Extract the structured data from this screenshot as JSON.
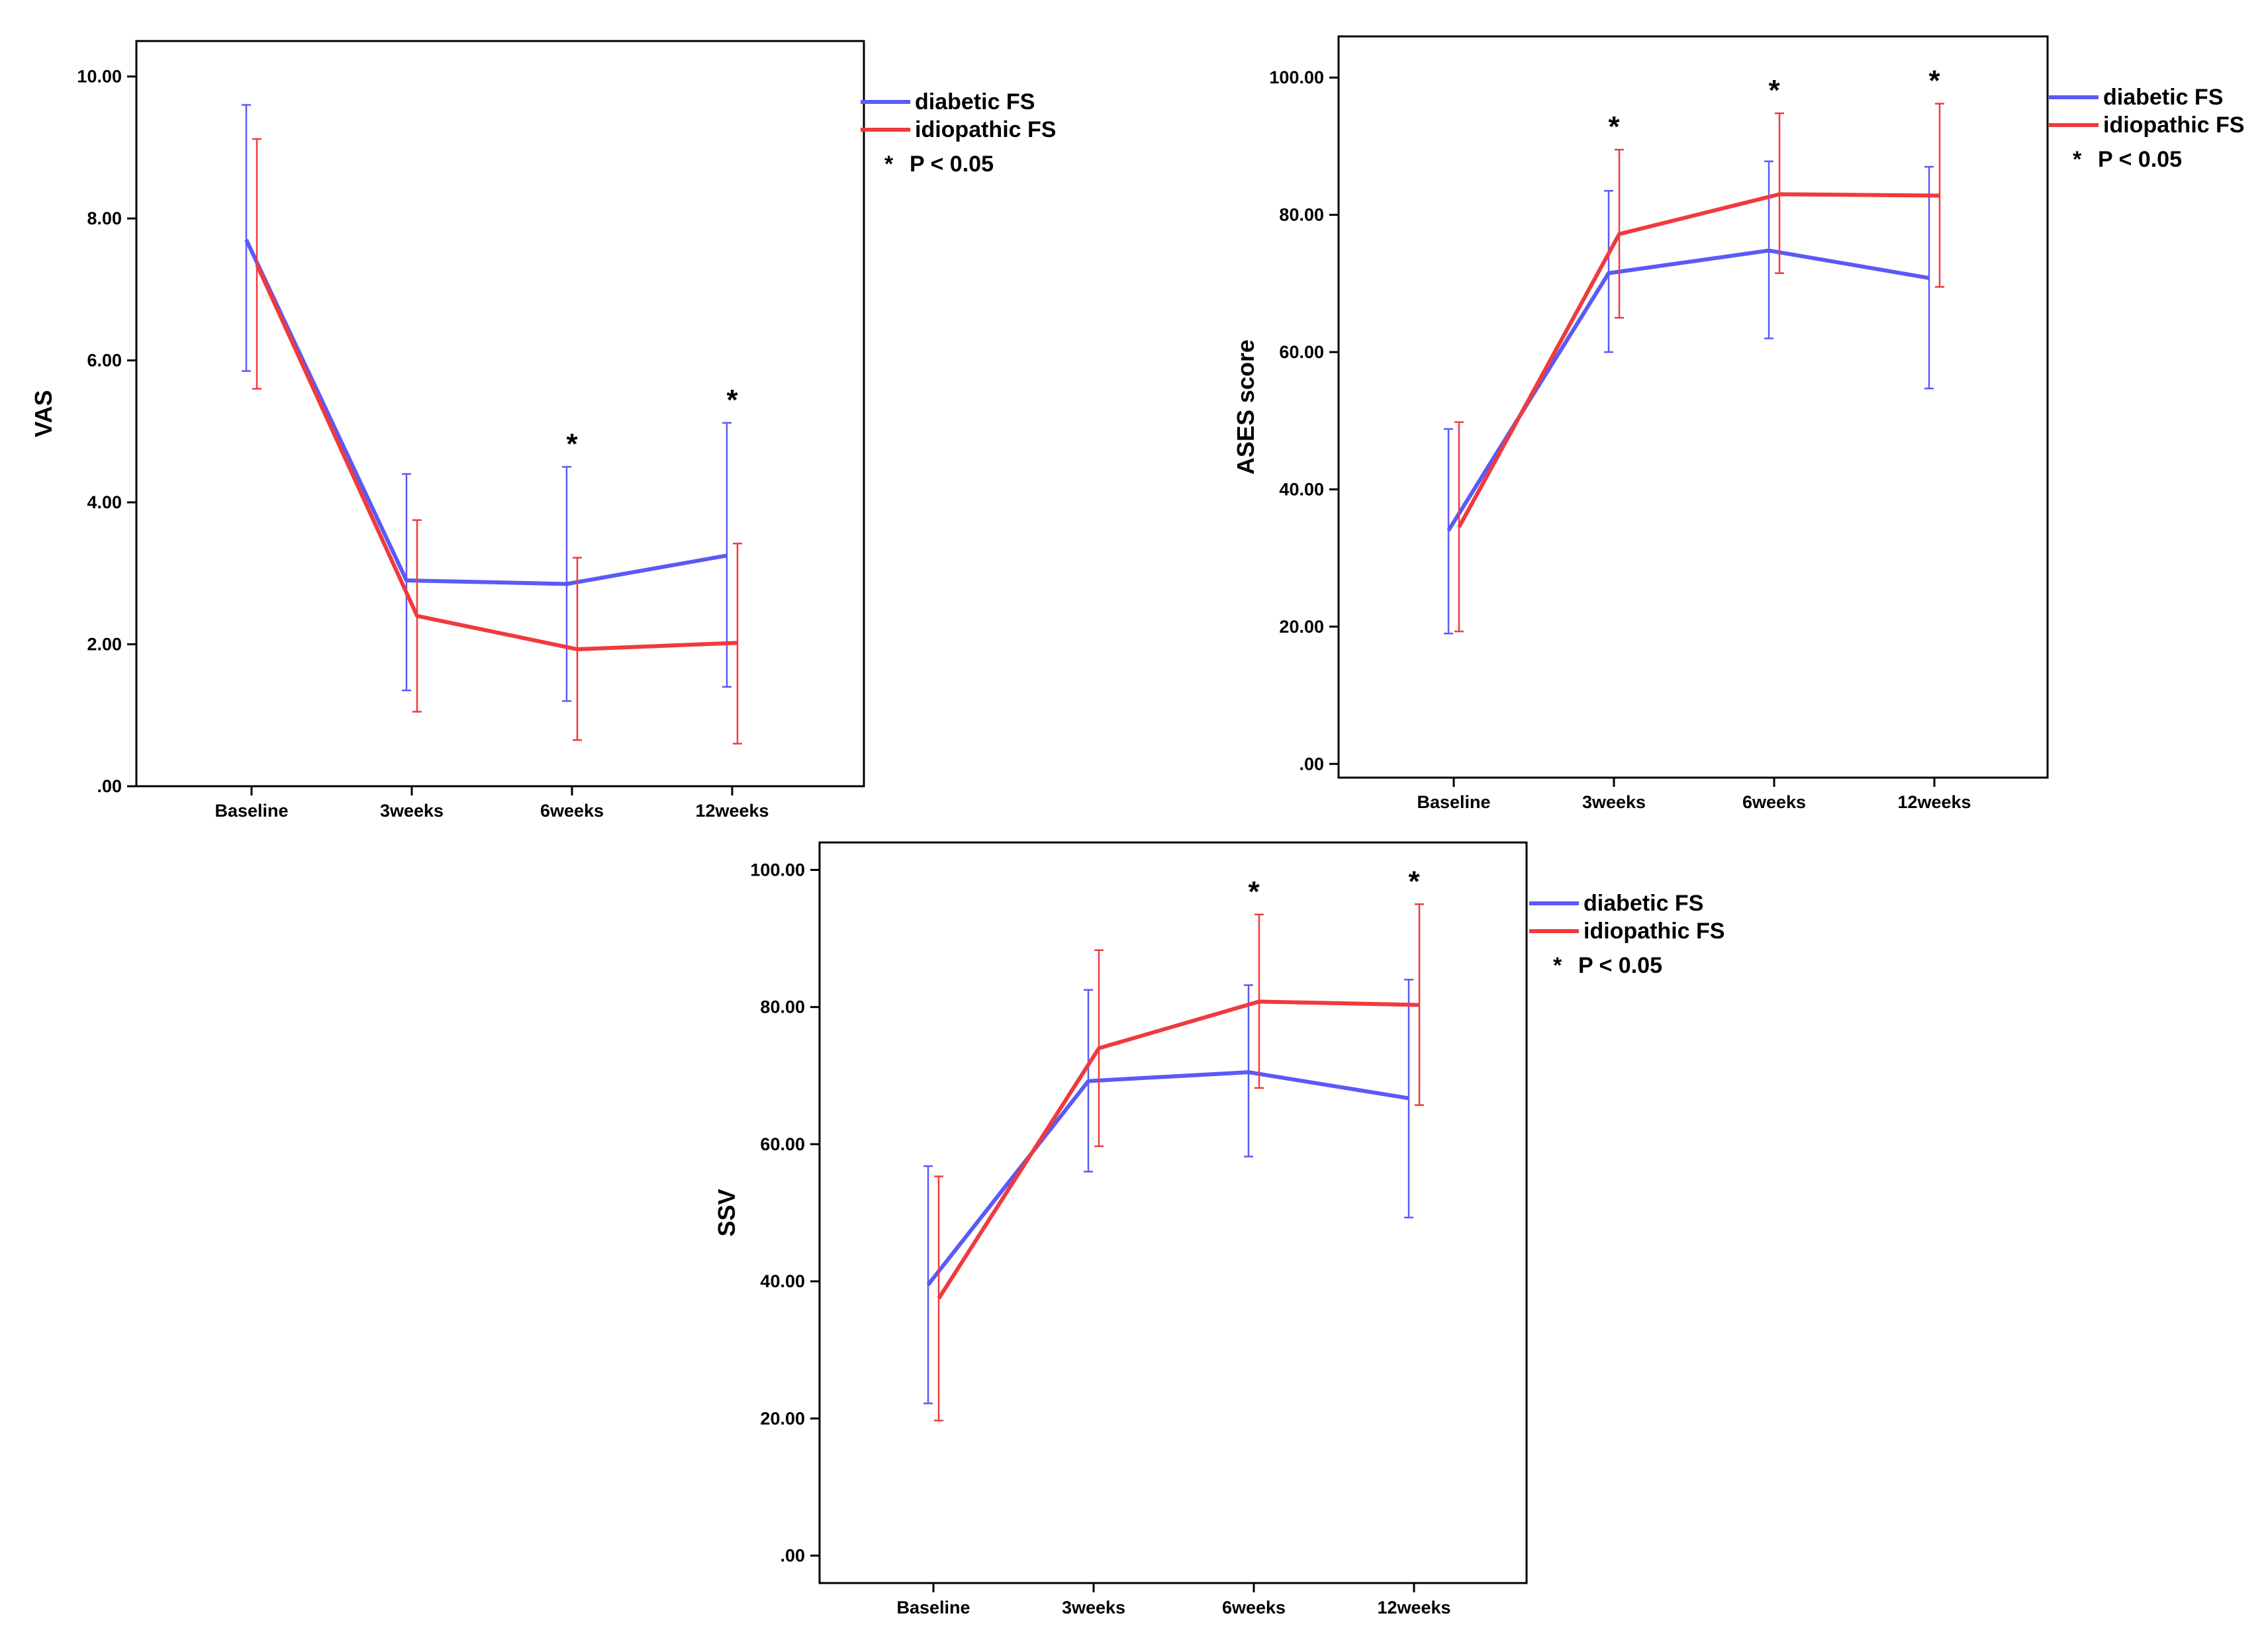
{
  "figure_title": "",
  "colors": {
    "diabetic": "#5a5af7",
    "idiopathic": "#f03a3e",
    "frame": "#000000"
  },
  "chart_data": [
    {
      "type": "line",
      "ylabel": "VAS",
      "ylim": [
        0,
        10.5
      ],
      "yticks": [
        ".00",
        "2.00",
        "4.00",
        "6.00",
        "8.00",
        "10.00"
      ],
      "ytick_values": [
        0,
        2,
        4,
        6,
        8,
        10
      ],
      "categories": [
        "Baseline",
        "3weeks",
        "6weeks",
        "12weeks"
      ],
      "series": [
        {
          "name": "diabetic FS",
          "color": "#5a5af7",
          "values": [
            7.7,
            2.9,
            2.85,
            3.25
          ],
          "lower": [
            5.85,
            1.35,
            1.2,
            1.4
          ],
          "upper": [
            9.6,
            4.4,
            4.5,
            5.12
          ]
        },
        {
          "name": "idiopathic FS",
          "color": "#f03a3e",
          "values": [
            7.35,
            2.4,
            1.93,
            2.02
          ],
          "lower": [
            5.6,
            1.05,
            0.65,
            0.6
          ],
          "upper": [
            9.12,
            3.75,
            3.22,
            3.42
          ]
        }
      ],
      "significance": [
        "",
        "",
        "*",
        "*"
      ],
      "legend": {
        "items": [
          "diabetic FS",
          "idiopathic FS"
        ],
        "note_marker": "*",
        "note_text": "P < 0.05",
        "placement": "top-right outside"
      }
    },
    {
      "type": "line",
      "ylabel": "ASES score",
      "ylim": [
        -2,
        106
      ],
      "yticks": [
        ".00",
        "20.00",
        "40.00",
        "60.00",
        "80.00",
        "100.00"
      ],
      "ytick_values": [
        0,
        20,
        40,
        60,
        80,
        100
      ],
      "categories": [
        "Baseline",
        "3weeks",
        "6weeks",
        "12weeks"
      ],
      "series": [
        {
          "name": "diabetic FS",
          "color": "#5a5af7",
          "values": [
            34,
            71.5,
            74.8,
            70.8
          ],
          "lower": [
            19,
            60,
            62,
            54.7
          ],
          "upper": [
            48.8,
            83.5,
            87.8,
            87
          ]
        },
        {
          "name": "idiopathic FS",
          "color": "#f03a3e",
          "values": [
            34.5,
            77.2,
            83,
            82.8
          ],
          "lower": [
            19.3,
            65,
            71.5,
            69.5
          ],
          "upper": [
            49.8,
            89.5,
            94.8,
            96.2
          ]
        }
      ],
      "significance": [
        "",
        "*",
        "*",
        "*"
      ],
      "legend": {
        "items": [
          "diabetic FS",
          "idiopathic FS"
        ],
        "note_marker": "*",
        "note_text": "P < 0.05",
        "placement": "top-right outside"
      }
    },
    {
      "type": "line",
      "ylabel": "SSV",
      "ylim": [
        -4,
        104
      ],
      "yticks": [
        ".00",
        "20.00",
        "40.00",
        "60.00",
        "80.00",
        "100.00"
      ],
      "ytick_values": [
        0,
        20,
        40,
        60,
        80,
        100
      ],
      "categories": [
        "Baseline",
        "3weeks",
        "6weeks",
        "12weeks"
      ],
      "series": [
        {
          "name": "diabetic FS",
          "color": "#5a5af7",
          "values": [
            39.5,
            69.2,
            70.5,
            66.7
          ],
          "lower": [
            22.2,
            56,
            58.2,
            49.3
          ],
          "upper": [
            56.8,
            82.5,
            83.2,
            84
          ]
        },
        {
          "name": "idiopathic FS",
          "color": "#f03a3e",
          "values": [
            37.5,
            74,
            80.8,
            80.3
          ],
          "lower": [
            19.7,
            59.7,
            68.2,
            65.7
          ],
          "upper": [
            55.3,
            88.3,
            93.5,
            95
          ]
        }
      ],
      "significance": [
        "",
        "",
        "*",
        "*"
      ],
      "legend": {
        "items": [
          "diabetic FS",
          "idiopathic FS"
        ],
        "note_marker": "*",
        "note_text": "P < 0.05",
        "placement": "top-right outside"
      }
    }
  ]
}
